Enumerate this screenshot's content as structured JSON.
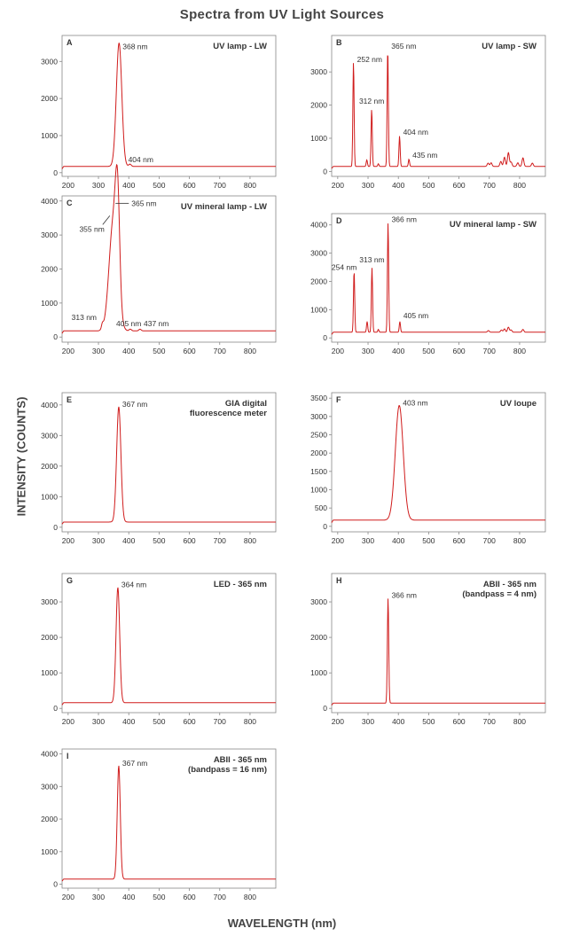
{
  "figure": {
    "title": "Spectra from UV Light Sources",
    "ylabel": "INTENSITY (COUNTS)",
    "xlabel": "WAVELENGTH (nm)"
  },
  "colors": {
    "line": "#d01c1c",
    "axis": "#888888",
    "text": "#333333"
  },
  "chart_data": [
    {
      "type": "line",
      "panel": "A",
      "title": "UV lamp - LW",
      "xlim": [
        180,
        885
      ],
      "ylim": [
        -100,
        3700
      ],
      "xticks": [
        200,
        300,
        400,
        500,
        600,
        700,
        800
      ],
      "yticks": [
        0,
        1000,
        2000,
        3000
      ],
      "baseline": 170,
      "peaks": [
        {
          "x": 368,
          "y": 3330,
          "w": 9
        },
        {
          "x": 404,
          "y": 60,
          "w": 4
        }
      ],
      "annotations": [
        {
          "text": "368 nm",
          "x": 368,
          "y": 3330,
          "pos": "right"
        },
        {
          "text": "404 nm",
          "x": 404,
          "y": 190,
          "pos": "above-right"
        }
      ]
    },
    {
      "type": "line",
      "panel": "B",
      "title": "UV lamp - SW",
      "xlim": [
        180,
        885
      ],
      "ylim": [
        -150,
        4100
      ],
      "xticks": [
        200,
        300,
        400,
        500,
        600,
        700,
        800
      ],
      "yticks": [
        0,
        1000,
        2000,
        3000
      ],
      "baseline": 150,
      "peaks": [
        {
          "x": 252,
          "y": 3160,
          "w": 2
        },
        {
          "x": 296,
          "y": 200,
          "w": 2
        },
        {
          "x": 312,
          "y": 1730,
          "w": 2
        },
        {
          "x": 334,
          "y": 80,
          "w": 2
        },
        {
          "x": 365,
          "y": 3560,
          "w": 2
        },
        {
          "x": 404,
          "y": 920,
          "w": 2
        },
        {
          "x": 435,
          "y": 220,
          "w": 2
        },
        {
          "x": 696,
          "y": 100,
          "w": 3
        },
        {
          "x": 706,
          "y": 110,
          "w": 3
        },
        {
          "x": 738,
          "y": 150,
          "w": 3
        },
        {
          "x": 750,
          "y": 280,
          "w": 3
        },
        {
          "x": 763,
          "y": 420,
          "w": 3
        },
        {
          "x": 772,
          "y": 130,
          "w": 3
        },
        {
          "x": 794,
          "y": 110,
          "w": 3
        },
        {
          "x": 811,
          "y": 260,
          "w": 3
        },
        {
          "x": 842,
          "y": 100,
          "w": 3
        }
      ],
      "annotations": [
        {
          "text": "252 nm",
          "x": 252,
          "y": 3300,
          "pos": "right"
        },
        {
          "text": "365 nm",
          "x": 365,
          "y": 3700,
          "pos": "right"
        },
        {
          "text": "312 nm",
          "x": 312,
          "y": 1930,
          "pos": "above"
        },
        {
          "text": "404 nm",
          "x": 404,
          "y": 1100,
          "pos": "right"
        },
        {
          "text": "435 nm",
          "x": 435,
          "y": 410,
          "pos": "right"
        }
      ]
    },
    {
      "type": "line",
      "panel": "C",
      "title": "UV mineral lamp - LW",
      "xlim": [
        180,
        885
      ],
      "ylim": [
        -150,
        4150
      ],
      "xticks": [
        200,
        300,
        400,
        500,
        600,
        700,
        800
      ],
      "yticks": [
        0,
        1000,
        2000,
        3000,
        4000
      ],
      "baseline": 180,
      "peaks": [
        {
          "x": 313,
          "y": 140,
          "w": 3
        },
        {
          "x": 349,
          "y": 3200,
          "w": 14
        },
        {
          "x": 363,
          "y": 2780,
          "w": 7
        },
        {
          "x": 405,
          "y": 50,
          "w": 4
        },
        {
          "x": 437,
          "y": 50,
          "w": 4
        }
      ],
      "annotations": [
        {
          "text": "365 nm",
          "x": 365,
          "y": 3880,
          "pos": "leader-right"
        },
        {
          "text": "355 nm",
          "x": 355,
          "y": 3880,
          "pos": "leader-left"
        },
        {
          "text": "313 nm",
          "x": 300,
          "y": 400,
          "pos": "above-left"
        },
        {
          "text": "405 nm",
          "x": 400,
          "y": 220,
          "pos": "above"
        },
        {
          "text": "437 nm",
          "x": 455,
          "y": 220,
          "pos": "above-right"
        }
      ]
    },
    {
      "type": "line",
      "panel": "D",
      "title": "UV mineral lamp - SW",
      "xlim": [
        180,
        885
      ],
      "ylim": [
        -150,
        4400
      ],
      "xticks": [
        200,
        300,
        400,
        500,
        600,
        700,
        800
      ],
      "yticks": [
        0,
        1000,
        2000,
        3000,
        4000
      ],
      "baseline": 200,
      "peaks": [
        {
          "x": 254,
          "y": 2180,
          "w": 2
        },
        {
          "x": 297,
          "y": 380,
          "w": 2
        },
        {
          "x": 313,
          "y": 2280,
          "w": 2
        },
        {
          "x": 334,
          "y": 100,
          "w": 2
        },
        {
          "x": 366,
          "y": 3880,
          "w": 2
        },
        {
          "x": 405,
          "y": 380,
          "w": 2
        },
        {
          "x": 697,
          "y": 60,
          "w": 3
        },
        {
          "x": 740,
          "y": 80,
          "w": 3
        },
        {
          "x": 750,
          "y": 120,
          "w": 3
        },
        {
          "x": 763,
          "y": 180,
          "w": 3
        },
        {
          "x": 772,
          "y": 80,
          "w": 3
        },
        {
          "x": 811,
          "y": 100,
          "w": 3
        }
      ],
      "annotations": [
        {
          "text": "366 nm",
          "x": 366,
          "y": 4100,
          "pos": "right"
        },
        {
          "text": "254 nm",
          "x": 254,
          "y": 2400,
          "pos": "left-label"
        },
        {
          "text": "313 nm",
          "x": 313,
          "y": 2550,
          "pos": "above"
        },
        {
          "text": "405 nm",
          "x": 405,
          "y": 700,
          "pos": "right"
        }
      ]
    },
    {
      "type": "line",
      "panel": "E",
      "title": "GIA digital fluorescence meter",
      "title_lines": [
        "GIA digital",
        "fluorescence meter"
      ],
      "xlim": [
        180,
        885
      ],
      "ylim": [
        -150,
        4400
      ],
      "xticks": [
        200,
        300,
        400,
        500,
        600,
        700,
        800
      ],
      "yticks": [
        0,
        1000,
        2000,
        3000,
        4000
      ],
      "baseline": 170,
      "peaks": [
        {
          "x": 367,
          "y": 3770,
          "w": 7
        }
      ],
      "annotations": [
        {
          "text": "367 nm",
          "x": 367,
          "y": 3940,
          "pos": "right"
        }
      ]
    },
    {
      "type": "line",
      "panel": "F",
      "title": "UV loupe",
      "xlim": [
        180,
        885
      ],
      "ylim": [
        -150,
        3650
      ],
      "xticks": [
        200,
        300,
        400,
        500,
        600,
        700,
        800
      ],
      "yticks": [
        0,
        500,
        1000,
        1500,
        2000,
        2500,
        3000,
        3500
      ],
      "baseline": 170,
      "peaks": [
        {
          "x": 403,
          "y": 3130,
          "w": 13
        }
      ],
      "annotations": [
        {
          "text": "403 nm",
          "x": 403,
          "y": 3300,
          "pos": "right"
        }
      ]
    },
    {
      "type": "line",
      "panel": "G",
      "title": "LED - 365 nm",
      "xlim": [
        180,
        885
      ],
      "ylim": [
        -120,
        3800
      ],
      "xticks": [
        200,
        300,
        400,
        500,
        600,
        700,
        800
      ],
      "yticks": [
        0,
        1000,
        2000,
        3000
      ],
      "baseline": 160,
      "peaks": [
        {
          "x": 364,
          "y": 3250,
          "w": 6
        }
      ],
      "annotations": [
        {
          "text": "364 nm",
          "x": 364,
          "y": 3410,
          "pos": "right"
        }
      ]
    },
    {
      "type": "line",
      "panel": "H",
      "title": "ABII - 365 nm (bandpass = 4 nm)",
      "title_lines": [
        "ABII - 365 nm",
        "(bandpass = 4 nm)"
      ],
      "xlim": [
        180,
        885
      ],
      "ylim": [
        -120,
        3800
      ],
      "xticks": [
        200,
        300,
        400,
        500,
        600,
        700,
        800
      ],
      "yticks": [
        0,
        1000,
        2000,
        3000
      ],
      "baseline": 150,
      "peaks": [
        {
          "x": 366,
          "y": 2960,
          "w": 2.2
        }
      ],
      "annotations": [
        {
          "text": "366 nm",
          "x": 366,
          "y": 3110,
          "pos": "right"
        }
      ]
    },
    {
      "type": "line",
      "panel": "I",
      "title": "ABII - 365 nm (bandpass = 16 nm)",
      "title_lines": [
        "ABII - 365 nm",
        "(bandpass = 16 nm)"
      ],
      "xlim": [
        180,
        885
      ],
      "ylim": [
        -120,
        4150
      ],
      "xticks": [
        200,
        300,
        400,
        500,
        600,
        700,
        800
      ],
      "yticks": [
        0,
        1000,
        2000,
        3000,
        4000
      ],
      "baseline": 160,
      "peaks": [
        {
          "x": 367,
          "y": 3480,
          "w": 5
        }
      ],
      "annotations": [
        {
          "text": "367 nm",
          "x": 367,
          "y": 3640,
          "pos": "right"
        }
      ]
    }
  ]
}
